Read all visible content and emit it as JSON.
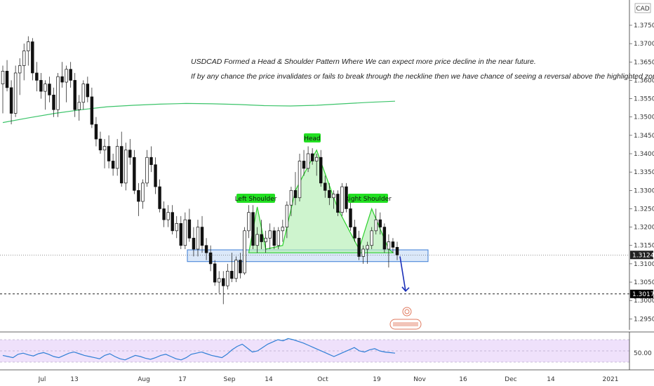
{
  "chart_data": {
    "type": "candlestick",
    "symbol_badge": "CAD",
    "annotations": [
      "USDCAD Formed a Head & Shoulder Pattern Where We can expect more price decline in the near future.",
      "If by any chance the price invalidates or fails to break through the neckline then we have chance of seeing a reversal above the highlighted zone"
    ],
    "pattern_labels": {
      "left_shoulder": "Left Shoulder",
      "head": "Head",
      "right_shoulder": "Right Shoulder"
    },
    "y_axis": {
      "min": 1.292,
      "max": 1.3815,
      "ticks": [
        "1.37500",
        "1.37000",
        "1.36500",
        "1.36000",
        "1.35500",
        "1.35000",
        "1.34500",
        "1.34000",
        "1.33500",
        "1.33000",
        "1.32500",
        "1.32000",
        "1.31500",
        "1.31000",
        "1.30500",
        "1.30000",
        "1.29500"
      ]
    },
    "x_axis": {
      "ticks": [
        "Jul",
        "13",
        "Aug",
        "17",
        "Sep",
        "14",
        "Oct",
        "19",
        "Nov",
        "16",
        "Dec",
        "14",
        "2021"
      ]
    },
    "price_tags": [
      {
        "label": "1.31241",
        "value": 1.31241
      },
      {
        "label": "1.30179",
        "value": 1.30179
      }
    ],
    "neckline_zone": {
      "top": 1.3138,
      "bottom": 1.3106
    },
    "moving_average": {
      "color": "#3cc46a",
      "values": [
        1.3485,
        1.3498,
        1.351,
        1.352,
        1.3528,
        1.3532,
        1.3535,
        1.3537,
        1.3536,
        1.3534,
        1.3531,
        1.353,
        1.3532,
        1.3536,
        1.354,
        1.3543
      ]
    },
    "candles": [
      {
        "o": 1.359,
        "h": 1.364,
        "l": 1.351,
        "c": 1.3625
      },
      {
        "o": 1.3625,
        "h": 1.3655,
        "l": 1.357,
        "c": 1.358
      },
      {
        "o": 1.358,
        "h": 1.36,
        "l": 1.348,
        "c": 1.351
      },
      {
        "o": 1.351,
        "h": 1.364,
        "l": 1.35,
        "c": 1.362
      },
      {
        "o": 1.362,
        "h": 1.366,
        "l": 1.356,
        "c": 1.364
      },
      {
        "o": 1.364,
        "h": 1.37,
        "l": 1.36,
        "c": 1.368
      },
      {
        "o": 1.368,
        "h": 1.372,
        "l": 1.364,
        "c": 1.3705
      },
      {
        "o": 1.3705,
        "h": 1.3715,
        "l": 1.36,
        "c": 1.362
      },
      {
        "o": 1.362,
        "h": 1.365,
        "l": 1.357,
        "c": 1.36
      },
      {
        "o": 1.36,
        "h": 1.362,
        "l": 1.355,
        "c": 1.357
      },
      {
        "o": 1.357,
        "h": 1.36,
        "l": 1.352,
        "c": 1.359
      },
      {
        "o": 1.359,
        "h": 1.361,
        "l": 1.354,
        "c": 1.356
      },
      {
        "o": 1.356,
        "h": 1.358,
        "l": 1.35,
        "c": 1.352
      },
      {
        "o": 1.352,
        "h": 1.362,
        "l": 1.35,
        "c": 1.361
      },
      {
        "o": 1.361,
        "h": 1.365,
        "l": 1.358,
        "c": 1.3595
      },
      {
        "o": 1.3595,
        "h": 1.364,
        "l": 1.354,
        "c": 1.363
      },
      {
        "o": 1.363,
        "h": 1.365,
        "l": 1.358,
        "c": 1.36
      },
      {
        "o": 1.36,
        "h": 1.362,
        "l": 1.35,
        "c": 1.352
      },
      {
        "o": 1.352,
        "h": 1.356,
        "l": 1.349,
        "c": 1.354
      },
      {
        "o": 1.354,
        "h": 1.36,
        "l": 1.352,
        "c": 1.359
      },
      {
        "o": 1.359,
        "h": 1.361,
        "l": 1.354,
        "c": 1.3555
      },
      {
        "o": 1.3555,
        "h": 1.358,
        "l": 1.347,
        "c": 1.348
      },
      {
        "o": 1.348,
        "h": 1.35,
        "l": 1.342,
        "c": 1.344
      },
      {
        "o": 1.344,
        "h": 1.346,
        "l": 1.34,
        "c": 1.341
      },
      {
        "o": 1.341,
        "h": 1.344,
        "l": 1.336,
        "c": 1.342
      },
      {
        "o": 1.342,
        "h": 1.345,
        "l": 1.336,
        "c": 1.338
      },
      {
        "o": 1.338,
        "h": 1.34,
        "l": 1.334,
        "c": 1.336
      },
      {
        "o": 1.336,
        "h": 1.344,
        "l": 1.334,
        "c": 1.342
      },
      {
        "o": 1.342,
        "h": 1.346,
        "l": 1.331,
        "c": 1.332
      },
      {
        "o": 1.332,
        "h": 1.343,
        "l": 1.33,
        "c": 1.341
      },
      {
        "o": 1.341,
        "h": 1.344,
        "l": 1.337,
        "c": 1.339
      },
      {
        "o": 1.339,
        "h": 1.341,
        "l": 1.329,
        "c": 1.33
      },
      {
        "o": 1.33,
        "h": 1.332,
        "l": 1.323,
        "c": 1.327
      },
      {
        "o": 1.327,
        "h": 1.333,
        "l": 1.325,
        "c": 1.332
      },
      {
        "o": 1.332,
        "h": 1.341,
        "l": 1.331,
        "c": 1.339
      },
      {
        "o": 1.339,
        "h": 1.342,
        "l": 1.335,
        "c": 1.337
      },
      {
        "o": 1.337,
        "h": 1.339,
        "l": 1.329,
        "c": 1.331
      },
      {
        "o": 1.331,
        "h": 1.333,
        "l": 1.324,
        "c": 1.325
      },
      {
        "o": 1.325,
        "h": 1.327,
        "l": 1.32,
        "c": 1.322
      },
      {
        "o": 1.322,
        "h": 1.326,
        "l": 1.32,
        "c": 1.324
      },
      {
        "o": 1.324,
        "h": 1.326,
        "l": 1.318,
        "c": 1.319
      },
      {
        "o": 1.319,
        "h": 1.323,
        "l": 1.317,
        "c": 1.321
      },
      {
        "o": 1.321,
        "h": 1.323,
        "l": 1.314,
        "c": 1.315
      },
      {
        "o": 1.315,
        "h": 1.324,
        "l": 1.314,
        "c": 1.322
      },
      {
        "o": 1.322,
        "h": 1.325,
        "l": 1.316,
        "c": 1.317
      },
      {
        "o": 1.317,
        "h": 1.32,
        "l": 1.312,
        "c": 1.314
      },
      {
        "o": 1.314,
        "h": 1.322,
        "l": 1.312,
        "c": 1.32
      },
      {
        "o": 1.32,
        "h": 1.323,
        "l": 1.313,
        "c": 1.315
      },
      {
        "o": 1.315,
        "h": 1.317,
        "l": 1.311,
        "c": 1.313
      },
      {
        "o": 1.313,
        "h": 1.315,
        "l": 1.308,
        "c": 1.31
      },
      {
        "o": 1.31,
        "h": 1.311,
        "l": 1.304,
        "c": 1.305
      },
      {
        "o": 1.305,
        "h": 1.308,
        "l": 1.302,
        "c": 1.306
      },
      {
        "o": 1.306,
        "h": 1.308,
        "l": 1.299,
        "c": 1.304
      },
      {
        "o": 1.304,
        "h": 1.31,
        "l": 1.303,
        "c": 1.308
      },
      {
        "o": 1.308,
        "h": 1.313,
        "l": 1.305,
        "c": 1.306
      },
      {
        "o": 1.306,
        "h": 1.312,
        "l": 1.305,
        "c": 1.311
      },
      {
        "o": 1.311,
        "h": 1.313,
        "l": 1.306,
        "c": 1.3075
      },
      {
        "o": 1.3075,
        "h": 1.32,
        "l": 1.307,
        "c": 1.319
      },
      {
        "o": 1.319,
        "h": 1.326,
        "l": 1.317,
        "c": 1.324
      },
      {
        "o": 1.324,
        "h": 1.326,
        "l": 1.314,
        "c": 1.315
      },
      {
        "o": 1.315,
        "h": 1.32,
        "l": 1.313,
        "c": 1.318
      },
      {
        "o": 1.318,
        "h": 1.322,
        "l": 1.314,
        "c": 1.316
      },
      {
        "o": 1.316,
        "h": 1.319,
        "l": 1.313,
        "c": 1.317
      },
      {
        "o": 1.317,
        "h": 1.321,
        "l": 1.314,
        "c": 1.319
      },
      {
        "o": 1.319,
        "h": 1.32,
        "l": 1.314,
        "c": 1.315
      },
      {
        "o": 1.315,
        "h": 1.32,
        "l": 1.314,
        "c": 1.319
      },
      {
        "o": 1.319,
        "h": 1.322,
        "l": 1.316,
        "c": 1.32
      },
      {
        "o": 1.32,
        "h": 1.327,
        "l": 1.317,
        "c": 1.326
      },
      {
        "o": 1.326,
        "h": 1.331,
        "l": 1.323,
        "c": 1.33
      },
      {
        "o": 1.33,
        "h": 1.335,
        "l": 1.326,
        "c": 1.328
      },
      {
        "o": 1.328,
        "h": 1.34,
        "l": 1.327,
        "c": 1.338
      },
      {
        "o": 1.338,
        "h": 1.341,
        "l": 1.334,
        "c": 1.336
      },
      {
        "o": 1.336,
        "h": 1.342,
        "l": 1.335,
        "c": 1.34
      },
      {
        "o": 1.34,
        "h": 1.3415,
        "l": 1.337,
        "c": 1.338
      },
      {
        "o": 1.338,
        "h": 1.34,
        "l": 1.334,
        "c": 1.339
      },
      {
        "o": 1.339,
        "h": 1.341,
        "l": 1.331,
        "c": 1.332
      },
      {
        "o": 1.332,
        "h": 1.334,
        "l": 1.328,
        "c": 1.33
      },
      {
        "o": 1.33,
        "h": 1.332,
        "l": 1.326,
        "c": 1.328
      },
      {
        "o": 1.328,
        "h": 1.33,
        "l": 1.325,
        "c": 1.329
      },
      {
        "o": 1.329,
        "h": 1.33,
        "l": 1.323,
        "c": 1.324
      },
      {
        "o": 1.324,
        "h": 1.332,
        "l": 1.323,
        "c": 1.331
      },
      {
        "o": 1.331,
        "h": 1.332,
        "l": 1.324,
        "c": 1.325
      },
      {
        "o": 1.325,
        "h": 1.327,
        "l": 1.319,
        "c": 1.32
      },
      {
        "o": 1.32,
        "h": 1.322,
        "l": 1.316,
        "c": 1.317
      },
      {
        "o": 1.317,
        "h": 1.319,
        "l": 1.311,
        "c": 1.312
      },
      {
        "o": 1.312,
        "h": 1.315,
        "l": 1.31,
        "c": 1.314
      },
      {
        "o": 1.314,
        "h": 1.316,
        "l": 1.31,
        "c": 1.315
      },
      {
        "o": 1.315,
        "h": 1.32,
        "l": 1.314,
        "c": 1.319
      },
      {
        "o": 1.319,
        "h": 1.325,
        "l": 1.318,
        "c": 1.322
      },
      {
        "o": 1.322,
        "h": 1.324,
        "l": 1.318,
        "c": 1.32
      },
      {
        "o": 1.32,
        "h": 1.321,
        "l": 1.313,
        "c": 1.314
      },
      {
        "o": 1.314,
        "h": 1.318,
        "l": 1.309,
        "c": 1.316
      },
      {
        "o": 1.316,
        "h": 1.317,
        "l": 1.313,
        "c": 1.3145
      },
      {
        "o": 1.3145,
        "h": 1.316,
        "l": 1.311,
        "c": 1.3124
      }
    ],
    "rsi": {
      "level_label": "50.00",
      "levels": [
        70,
        50,
        30
      ],
      "values": [
        42,
        40,
        38,
        44,
        46,
        43,
        41,
        45,
        47,
        44,
        40,
        38,
        42,
        46,
        48,
        45,
        42,
        40,
        38,
        36,
        42,
        45,
        40,
        36,
        34,
        38,
        42,
        40,
        37,
        35,
        38,
        42,
        44,
        40,
        36,
        34,
        38,
        44,
        46,
        48,
        45,
        42,
        40,
        38,
        44,
        52,
        58,
        62,
        55,
        48,
        50,
        56,
        62,
        66,
        70,
        68,
        72,
        70,
        67,
        64,
        60,
        56,
        52,
        48,
        44,
        40,
        44,
        48,
        52,
        56,
        50,
        48,
        52,
        54,
        50,
        48,
        47,
        46
      ]
    }
  }
}
